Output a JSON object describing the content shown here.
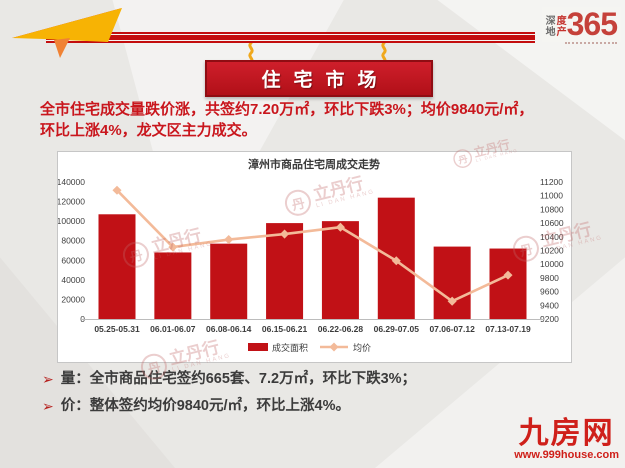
{
  "header": {
    "brand": {
      "word1": "深",
      "word2": "度",
      "word3": "地",
      "word4": "产",
      "number": "365"
    },
    "banner_title": "住宅市场"
  },
  "summary": {
    "line1": "全市住宅成交量跌价涨，共签约7.20万㎡，环比下跌3%；均价9840元/㎡，",
    "line2": "环比上涨4%，龙文区主力成交。"
  },
  "chart_data": {
    "type": "bar+line",
    "title": "漳州市商品住宅周成交走势",
    "categories": [
      "05.25-05.31",
      "06.01-06.07",
      "06.08-06.14",
      "06.15-06.21",
      "06.22-06.28",
      "06.29-07.05",
      "07.06-07.12",
      "07.13-07.19"
    ],
    "series": [
      {
        "name": "成交面积",
        "type": "bar",
        "axis": "left",
        "color": "#c11116",
        "values": [
          107000,
          68000,
          77000,
          98000,
          100000,
          124000,
          74000,
          72000
        ]
      },
      {
        "name": "均价",
        "type": "line",
        "axis": "right",
        "color": "#f3ba99",
        "values": [
          11080,
          10250,
          10360,
          10440,
          10540,
          10050,
          9460,
          9840
        ]
      }
    ],
    "left_axis": {
      "min": 0,
      "max": 140000,
      "step": 20000,
      "label": ""
    },
    "right_axis": {
      "min": 9200,
      "max": 11200,
      "step": 200,
      "label": ""
    },
    "grid": false,
    "legend_position": "bottom"
  },
  "bullets": [
    {
      "marker": "➢",
      "text": "量：全市商品住宅签约665套、7.2万㎡，环比下跌3%；"
    },
    {
      "marker": "➢",
      "text": "价：整体签约均价9840元/㎡，环比上涨4%。"
    }
  ],
  "watermark": {
    "symbol": "丹",
    "text": "立丹行",
    "subtext": "LI DAN HANG"
  },
  "footer_logo": {
    "name": "九房网",
    "url": "www.999house.com"
  },
  "colors": {
    "accent_red": "#c11116",
    "line_peach": "#f3ba99",
    "summary_red": "#c9161d"
  }
}
